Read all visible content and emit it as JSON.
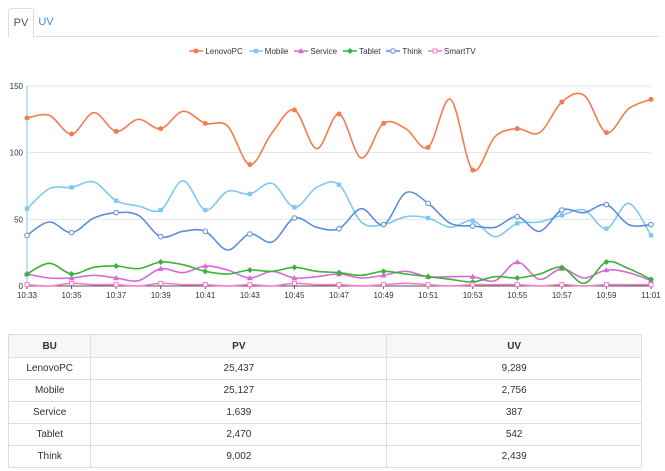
{
  "tabs": [
    {
      "label": "PV"
    },
    {
      "label": "UV"
    }
  ],
  "chart_data": {
    "type": "line",
    "x": [
      "10:33",
      "10:34",
      "10:35",
      "10:36",
      "10:37",
      "10:38",
      "10:39",
      "10:40",
      "10:41",
      "10:42",
      "10:43",
      "10:44",
      "10:45",
      "10:46",
      "10:47",
      "10:48",
      "10:49",
      "10:50",
      "10:51",
      "10:52",
      "10:53",
      "10:54",
      "10:55",
      "10:56",
      "10:57",
      "10:58",
      "10:59",
      "11:00",
      "11:01"
    ],
    "tick_labels": [
      "10:33",
      "10:35",
      "10:37",
      "10:39",
      "10:41",
      "10:43",
      "10:45",
      "10:47",
      "10:49",
      "10:51",
      "10:53",
      "10:55",
      "10:57",
      "10:59",
      "11:01"
    ],
    "yticks": [
      "0",
      "50",
      "100",
      "150"
    ],
    "ylim": [
      0,
      150
    ],
    "legend_position": "top-center",
    "series": [
      {
        "name": "LenovoPC",
        "color": "#f47b4f",
        "marker": "circle",
        "values": [
          126,
          128,
          114,
          130,
          116,
          125,
          118,
          131,
          122,
          120,
          91,
          115,
          132,
          103,
          129,
          96,
          122,
          118,
          104,
          140,
          87,
          112,
          118,
          115,
          138,
          143,
          115,
          133,
          140
        ]
      },
      {
        "name": "Mobile",
        "color": "#7fc9ee",
        "marker": "square",
        "values": [
          58,
          73,
          74,
          78,
          64,
          60,
          57,
          79,
          57,
          71,
          69,
          77,
          59,
          74,
          76,
          48,
          46,
          52,
          51,
          44,
          49,
          37,
          47,
          48,
          53,
          57,
          43,
          62,
          38
        ]
      },
      {
        "name": "Service",
        "color": "#d56bd5",
        "marker": "triangle",
        "values": [
          9,
          6,
          6,
          8,
          6,
          4,
          13,
          10,
          15,
          12,
          6,
          11,
          6,
          7,
          9,
          6,
          8,
          11,
          7,
          7,
          7,
          4,
          18,
          5,
          13,
          6,
          12,
          10,
          4
        ]
      },
      {
        "name": "Tablet",
        "color": "#39b339",
        "marker": "diamond",
        "values": [
          9,
          17,
          9,
          14,
          15,
          13,
          18,
          16,
          11,
          9,
          12,
          11,
          14,
          11,
          10,
          8,
          11,
          9,
          7,
          5,
          3,
          7,
          6,
          9,
          14,
          2,
          18,
          13,
          5
        ]
      },
      {
        "name": "Think",
        "color": "#5b8fd8",
        "marker": "circle-open",
        "values": [
          38,
          48,
          40,
          51,
          55,
          53,
          37,
          41,
          41,
          27,
          39,
          33,
          51,
          44,
          43,
          58,
          46,
          70,
          62,
          47,
          45,
          44,
          52,
          41,
          57,
          55,
          61,
          46,
          46
        ]
      },
      {
        "name": "SmartTV",
        "color": "#f27bc7",
        "marker": "square-open",
        "values": [
          1,
          0,
          2,
          1,
          1,
          0,
          2,
          1,
          1,
          0,
          1,
          0,
          2,
          1,
          1,
          0,
          1,
          2,
          1,
          0,
          1,
          1,
          1,
          0,
          1,
          0,
          1,
          1,
          1
        ]
      }
    ]
  },
  "table": {
    "headers": [
      "BU",
      "PV",
      "UV"
    ],
    "rows": [
      [
        "LenovoPC",
        "25,437",
        "9,289"
      ],
      [
        "Mobile",
        "25,127",
        "2,756"
      ],
      [
        "Service",
        "1,639",
        "387"
      ],
      [
        "Tablet",
        "2,470",
        "542"
      ],
      [
        "Think",
        "9,002",
        "2,439"
      ]
    ]
  }
}
